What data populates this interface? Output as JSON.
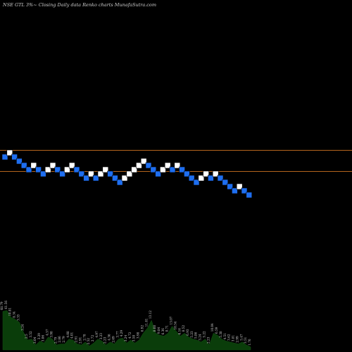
{
  "header": {
    "symbol": "NSE GTL",
    "change": "3%",
    "arrow": "~",
    "price_type": "Closing",
    "frequency": "Daily data",
    "chart_kind": "Renko",
    "site": "charts MunafaSutra.com"
  },
  "colors": {
    "background": "#000000",
    "up_brick": "#ffffff",
    "down_brick": "#1e6ef0",
    "level_line": "#b5651d",
    "volume_fill": "#0a3d0a",
    "volume_label": "#d0d0d0"
  },
  "chart_data": {
    "type": "renko",
    "value_range": [
      0,
      25
    ],
    "bricks": [
      {
        "level": 21,
        "dir": "down"
      },
      {
        "level": 22,
        "dir": "up"
      },
      {
        "level": 21,
        "dir": "down"
      },
      {
        "level": 20,
        "dir": "down"
      },
      {
        "level": 19,
        "dir": "down"
      },
      {
        "level": 18,
        "dir": "down"
      },
      {
        "level": 19,
        "dir": "up"
      },
      {
        "level": 18,
        "dir": "down"
      },
      {
        "level": 17,
        "dir": "down"
      },
      {
        "level": 18,
        "dir": "up"
      },
      {
        "level": 19,
        "dir": "up"
      },
      {
        "level": 18,
        "dir": "down"
      },
      {
        "level": 17,
        "dir": "down"
      },
      {
        "level": 18,
        "dir": "up"
      },
      {
        "level": 19,
        "dir": "up"
      },
      {
        "level": 18,
        "dir": "down"
      },
      {
        "level": 17,
        "dir": "down"
      },
      {
        "level": 16,
        "dir": "down"
      },
      {
        "level": 17,
        "dir": "up"
      },
      {
        "level": 16,
        "dir": "down"
      },
      {
        "level": 17,
        "dir": "up"
      },
      {
        "level": 18,
        "dir": "up"
      },
      {
        "level": 17,
        "dir": "down"
      },
      {
        "level": 16,
        "dir": "down"
      },
      {
        "level": 15,
        "dir": "down"
      },
      {
        "level": 16,
        "dir": "up"
      },
      {
        "level": 17,
        "dir": "up"
      },
      {
        "level": 18,
        "dir": "up"
      },
      {
        "level": 19,
        "dir": "up"
      },
      {
        "level": 20,
        "dir": "up"
      },
      {
        "level": 19,
        "dir": "down"
      },
      {
        "level": 18,
        "dir": "down"
      },
      {
        "level": 17,
        "dir": "down"
      },
      {
        "level": 18,
        "dir": "up"
      },
      {
        "level": 19,
        "dir": "up"
      },
      {
        "level": 18,
        "dir": "down"
      },
      {
        "level": 19,
        "dir": "up"
      },
      {
        "level": 18,
        "dir": "down"
      },
      {
        "level": 17,
        "dir": "down"
      },
      {
        "level": 16,
        "dir": "down"
      },
      {
        "level": 15,
        "dir": "down"
      },
      {
        "level": 16,
        "dir": "up"
      },
      {
        "level": 17,
        "dir": "up"
      },
      {
        "level": 16,
        "dir": "down"
      },
      {
        "level": 17,
        "dir": "up"
      },
      {
        "level": 16,
        "dir": "down"
      },
      {
        "level": 15,
        "dir": "down"
      },
      {
        "level": 14,
        "dir": "down"
      },
      {
        "level": 13,
        "dir": "down"
      },
      {
        "level": 14,
        "dir": "up"
      },
      {
        "level": 13,
        "dir": "down"
      },
      {
        "level": 12,
        "dir": "down"
      }
    ],
    "horizontal_levels": [
      22.5,
      17.5
    ],
    "volume": [
      {
        "v": 0.78,
        "label": "68.79"
      },
      {
        "v": 0.8,
        "label": "61.56"
      },
      {
        "v": 0.66,
        "label": "10.81"
      },
      {
        "v": 0.62,
        "label": "8.34"
      },
      {
        "v": 0.56,
        "label": "3.33"
      },
      {
        "v": 0.36,
        "label": "3.24"
      },
      {
        "v": 0.2,
        "label": "2.5"
      },
      {
        "v": 0.22,
        "label": "3.52"
      },
      {
        "v": 0.1,
        "label": "3.04"
      },
      {
        "v": 0.18,
        "label": "3.29"
      },
      {
        "v": 0.14,
        "label": "3.06"
      },
      {
        "v": 0.26,
        "label": "4.57"
      },
      {
        "v": 0.22,
        "label": "3.98"
      },
      {
        "v": 0.1,
        "label": "2.79"
      },
      {
        "v": 0.12,
        "label": "2.86"
      },
      {
        "v": 0.12,
        "label": "2.79"
      },
      {
        "v": 0.22,
        "label": "4.08"
      },
      {
        "v": 0.2,
        "label": "4.01"
      },
      {
        "v": 0.12,
        "label": "2.91"
      },
      {
        "v": 0.1,
        "label": "2.91"
      },
      {
        "v": 0.16,
        "label": "2.78"
      },
      {
        "v": 0.08,
        "label": "2.52"
      },
      {
        "v": 0.14,
        "label": "2.72"
      },
      {
        "v": 0.22,
        "label": "4.97"
      },
      {
        "v": 0.18,
        "label": "3.23"
      },
      {
        "v": 0.1,
        "label": "2.23"
      },
      {
        "v": 0.16,
        "label": "4.36"
      },
      {
        "v": 0.12,
        "label": "2.69"
      },
      {
        "v": 0.22,
        "label": "3.77"
      },
      {
        "v": 0.24,
        "label": "4.29"
      },
      {
        "v": 0.14,
        "label": "3.24"
      },
      {
        "v": 0.2,
        "label": "4.72"
      },
      {
        "v": 0.14,
        "label": "3.58"
      },
      {
        "v": 0.2,
        "label": "3.98"
      },
      {
        "v": 0.34,
        "label": "6.92"
      },
      {
        "v": 0.44,
        "label": "11.81"
      },
      {
        "v": 0.6,
        "label": "13.12"
      },
      {
        "v": 0.34,
        "label": "8.88"
      },
      {
        "v": 0.3,
        "label": "9.84"
      },
      {
        "v": 0.28,
        "label": "6.36"
      },
      {
        "v": 0.34,
        "label": "8.71"
      },
      {
        "v": 0.48,
        "label": "13.07"
      },
      {
        "v": 0.38,
        "label": "10.54"
      },
      {
        "v": 0.28,
        "label": "6.16"
      },
      {
        "v": 0.34,
        "label": "8.52"
      },
      {
        "v": 0.26,
        "label": "6.93"
      },
      {
        "v": 0.22,
        "label": "5.23"
      },
      {
        "v": 0.2,
        "label": "5.86"
      },
      {
        "v": 0.16,
        "label": "3.24"
      },
      {
        "v": 0.22,
        "label": "5.22"
      },
      {
        "v": 0.1,
        "label": "2.23"
      },
      {
        "v": 0.34,
        "label": "10.04"
      },
      {
        "v": 0.3,
        "label": "6.59"
      },
      {
        "v": 0.22,
        "label": "5.38"
      },
      {
        "v": 0.18,
        "label": "4.51"
      },
      {
        "v": 0.16,
        "label": "3.62"
      },
      {
        "v": 0.14,
        "label": "3.81"
      },
      {
        "v": 0.12,
        "label": "2.99"
      },
      {
        "v": 0.16,
        "label": "5.47"
      },
      {
        "v": 0.1,
        "label": "3.51"
      },
      {
        "v": 0.06,
        "label": "1.76"
      }
    ]
  }
}
